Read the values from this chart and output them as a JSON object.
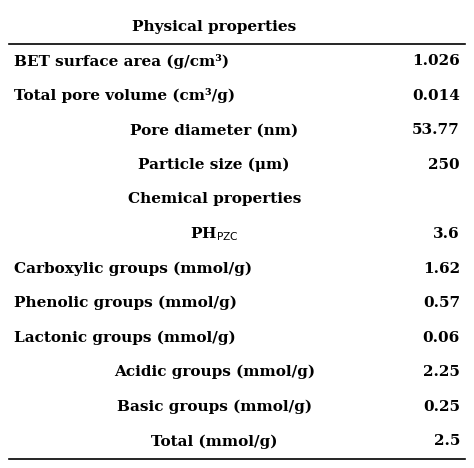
{
  "title": "Physical properties",
  "rows": [
    {
      "label": "BET surface area (g/cm³)",
      "value": "1.026",
      "ha": "left"
    },
    {
      "label": "Total pore volume (cm³/g)",
      "value": "0.014",
      "ha": "left"
    },
    {
      "label": "Pore diameter (nm)",
      "value": "53.77",
      "ha": "center"
    },
    {
      "label": "Particle size (μm)",
      "value": "250",
      "ha": "center"
    },
    {
      "label": "Chemical properties",
      "value": "",
      "ha": "center",
      "is_section": true
    },
    {
      "label": "PH$_\\mathrm{PZC}$",
      "value": "3.6",
      "ha": "center"
    },
    {
      "label": "Carboxylic groups (mmol/g)",
      "value": "1.62",
      "ha": "left"
    },
    {
      "label": "Phenolic groups (mmol/g)",
      "value": "0.57",
      "ha": "left"
    },
    {
      "label": "Lactonic groups (mmol/g)",
      "value": "0.06",
      "ha": "left"
    },
    {
      "label": "Acidic groups (mmol/g)",
      "value": "2.25",
      "ha": "center"
    },
    {
      "label": "Basic groups (mmol/g)",
      "value": "0.25",
      "ha": "center"
    },
    {
      "label": "Total (mmol/g)",
      "value": "2.5",
      "ha": "center"
    }
  ],
  "bg_color": "#ffffff",
  "text_color": "#000000",
  "font_size": 11,
  "title_font_size": 11,
  "line_color": "#000000",
  "line_lw": 1.2
}
